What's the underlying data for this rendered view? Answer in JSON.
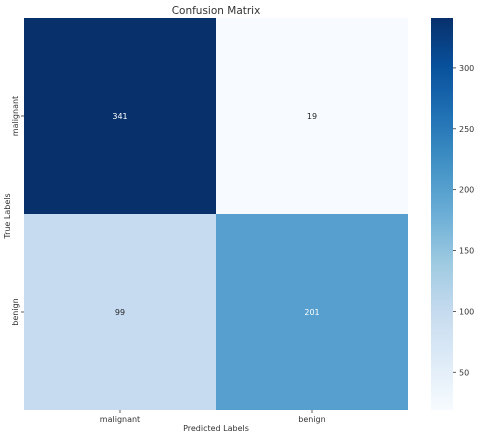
{
  "chart_data": {
    "type": "heatmap",
    "title": "Confusion Matrix",
    "xlabel": "Predicted Labels",
    "ylabel": "True Labels",
    "x_categories": [
      "malignant",
      "benign"
    ],
    "y_categories": [
      "malignant",
      "benign"
    ],
    "values": [
      [
        341,
        19
      ],
      [
        99,
        201
      ]
    ],
    "colorscale": {
      "name": "Blues",
      "min": 19,
      "max": 341,
      "stops": [
        "#f7fbff",
        "#deebf7",
        "#c6dbef",
        "#9ecae1",
        "#6baed6",
        "#4292c6",
        "#2171b5",
        "#08519c",
        "#08306b"
      ],
      "ticks": [
        50,
        100,
        150,
        200,
        250,
        300
      ]
    },
    "cell_text_colors": {
      "light": "#ffffff",
      "dark": "#262626"
    },
    "grid": false
  }
}
